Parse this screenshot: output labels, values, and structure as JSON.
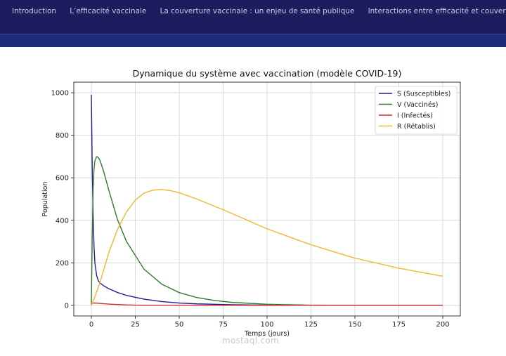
{
  "nav": {
    "items": [
      "Introduction",
      "L’efficacité vaccinale",
      "La couverture vaccinale : un enjeu de santé publique",
      "Interactions entre efficacité et couverture"
    ]
  },
  "colors": {
    "nav_bg": "#1c1c5e",
    "subbar_bg": "#1f2a7a"
  },
  "chart_data": {
    "type": "line",
    "title": "Dynamique du système avec vaccination (modèle COVID-19)",
    "xlabel": "Temps (jours)",
    "ylabel": "Population",
    "xlim": [
      -10,
      210
    ],
    "ylim": [
      -50,
      1050
    ],
    "xticks": [
      0,
      25,
      50,
      75,
      100,
      125,
      150,
      175,
      200
    ],
    "yticks": [
      0,
      200,
      400,
      600,
      800,
      1000
    ],
    "grid": true,
    "legend_position": "top-right",
    "series": [
      {
        "name": "S (Susceptibles)",
        "color": "#1f1f8f",
        "x": [
          0,
          0.5,
          1,
          1.5,
          2,
          3,
          4,
          5,
          7,
          10,
          15,
          20,
          30,
          40,
          50,
          60,
          80,
          100,
          125,
          150,
          200
        ],
        "y": [
          990,
          640,
          420,
          280,
          200,
          140,
          115,
          105,
          92,
          78,
          60,
          47,
          29,
          18,
          11,
          7,
          3,
          1,
          0,
          0,
          0
        ]
      },
      {
        "name": "V (Vaccinés)",
        "color": "#2e7d32",
        "x": [
          0,
          0.5,
          1,
          1.5,
          2,
          3,
          4,
          5,
          7,
          10,
          15,
          20,
          30,
          40,
          50,
          60,
          70,
          80,
          100,
          125,
          150,
          200
        ],
        "y": [
          0,
          330,
          550,
          640,
          680,
          700,
          695,
          680,
          630,
          540,
          400,
          300,
          170,
          100,
          60,
          37,
          23,
          14,
          5,
          1,
          0,
          0
        ]
      },
      {
        "name": "I (Infectés)",
        "color": "#d32f2f",
        "x": [
          0,
          2,
          5,
          10,
          15,
          20,
          25,
          30,
          50,
          100,
          200
        ],
        "y": [
          10,
          11,
          9,
          6,
          4,
          2,
          1,
          0.5,
          0,
          0,
          0
        ]
      },
      {
        "name": "R (Rétablis)",
        "color": "#f0b72f",
        "x": [
          0,
          2,
          5,
          10,
          15,
          20,
          25,
          30,
          35,
          40,
          45,
          50,
          60,
          75,
          100,
          125,
          150,
          175,
          200
        ],
        "y": [
          0,
          40,
          110,
          250,
          360,
          440,
          495,
          528,
          542,
          545,
          540,
          530,
          500,
          450,
          360,
          285,
          222,
          175,
          137
        ]
      }
    ]
  },
  "watermark": "mostaql.com"
}
